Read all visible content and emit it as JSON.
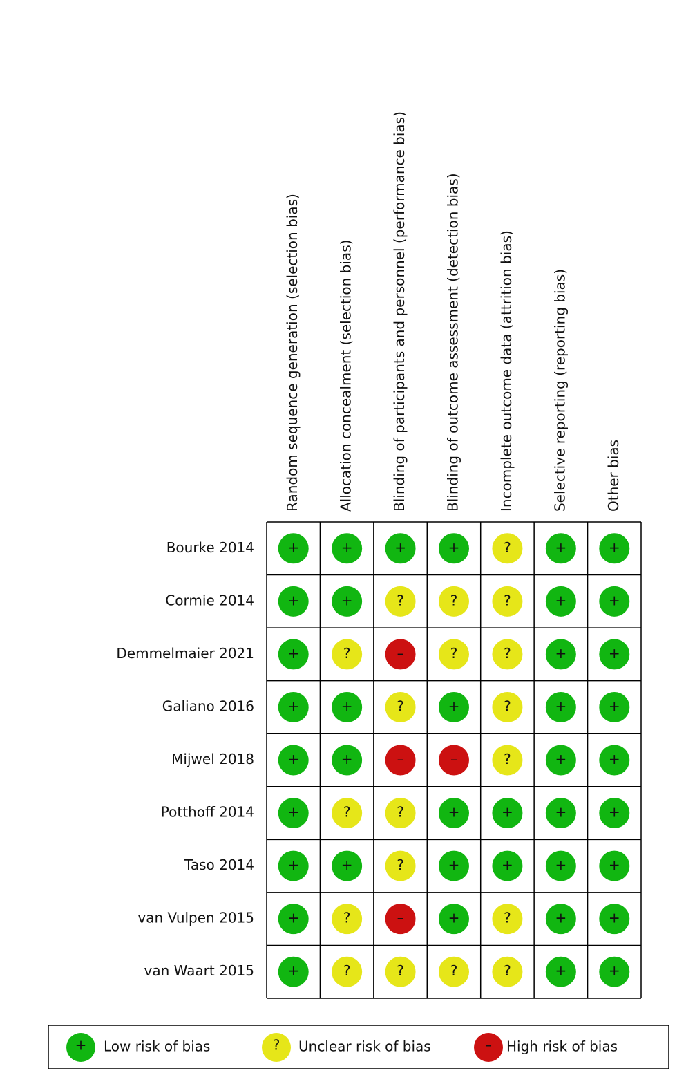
{
  "columns": [
    "Random sequence generation (selection bias)",
    "Allocation concealment (selection bias)",
    "Blinding of participants and personnel (performance bias)",
    "Blinding of outcome assessment (detection bias)",
    "Incomplete outcome data (attrition bias)",
    "Selective reporting (reporting bias)",
    "Other bias"
  ],
  "rows": [
    {
      "study": "Bourke 2014",
      "judgments": [
        "+",
        "+",
        "+",
        "+",
        "?",
        "+",
        "+"
      ]
    },
    {
      "study": "Cormie 2014",
      "judgments": [
        "+",
        "+",
        "?",
        "?",
        "?",
        "+",
        "+"
      ]
    },
    {
      "study": "Demmelmaier 2021",
      "judgments": [
        "+",
        "?",
        "–",
        "?",
        "?",
        "+",
        "+"
      ]
    },
    {
      "study": "Galiano 2016",
      "judgments": [
        "+",
        "+",
        "?",
        "+",
        "?",
        "+",
        "+"
      ]
    },
    {
      "study": "Mijwel 2018",
      "judgments": [
        "+",
        "+",
        "–",
        "–",
        "?",
        "+",
        "+"
      ]
    },
    {
      "study": "Potthoff 2014",
      "judgments": [
        "+",
        "?",
        "?",
        "+",
        "+",
        "+",
        "+"
      ]
    },
    {
      "study": "Taso 2014",
      "judgments": [
        "+",
        "+",
        "?",
        "+",
        "+",
        "+",
        "+"
      ]
    },
    {
      "study": "van Vulpen 2015",
      "judgments": [
        "+",
        "?",
        "–",
        "+",
        "?",
        "+",
        "+"
      ]
    },
    {
      "study": "van Waart 2015",
      "judgments": [
        "+",
        "?",
        "?",
        "?",
        "?",
        "+",
        "+"
      ]
    }
  ],
  "legend": [
    {
      "symbol": "+",
      "label": "Low risk of bias",
      "color": "#11b611"
    },
    {
      "symbol": "?",
      "label": "Unclear risk of bias",
      "color": "#e6e619"
    },
    {
      "symbol": "–",
      "label": "High risk of bias",
      "color": "#cc1111"
    }
  ]
}
